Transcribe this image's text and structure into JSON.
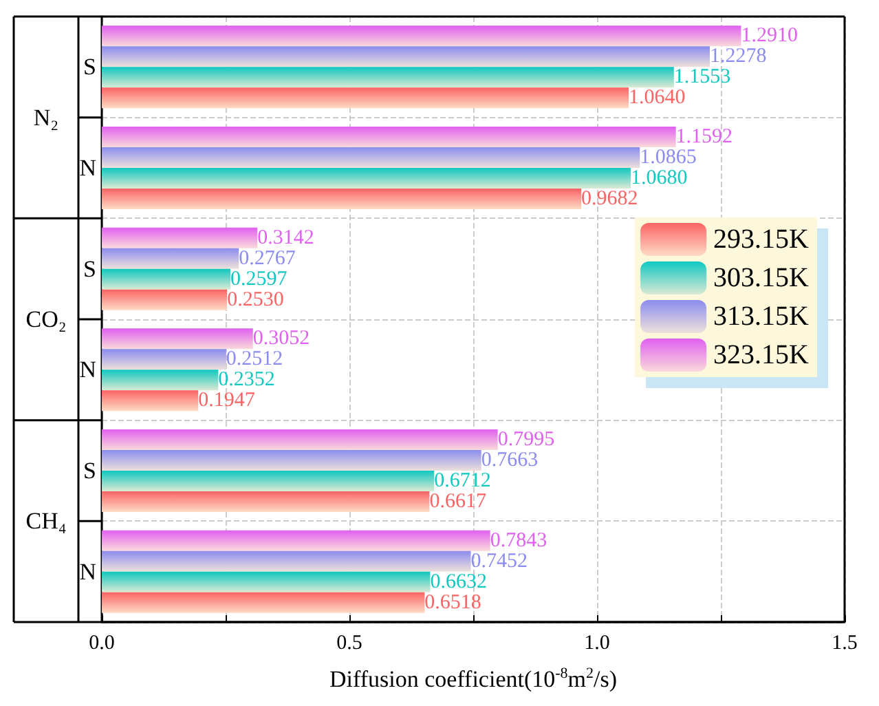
{
  "chart_data": {
    "type": "bar",
    "orientation": "horizontal",
    "xlabel": "Diffusion coefficient(10$^{-8}$m$^{2}$/s)",
    "categories": [
      "S",
      "N",
      "S",
      "N",
      "S",
      "N"
    ],
    "annotations": [
      "N₂",
      "CO₂",
      "CH₄"
    ],
    "series": [
      {
        "name": "293.15K",
        "color": "#fa6464",
        "values": [
          1.064,
          0.9682,
          0.253,
          0.1947,
          0.6617,
          0.6518
        ],
        "value_labels": [
          "1.0640",
          "0.9682",
          "0.2530",
          "0.1947",
          "0.6617",
          "0.6518"
        ]
      },
      {
        "name": "303.15K",
        "color": "#10c8c0",
        "values": [
          1.1553,
          1.068,
          0.2597,
          0.2352,
          0.6712,
          0.6632
        ],
        "value_labels": [
          "1.1553",
          "1.0680",
          "0.2597",
          "0.2352",
          "0.6712",
          "0.6632"
        ]
      },
      {
        "name": "313.15K",
        "color": "#8c8cf0",
        "values": [
          1.2278,
          1.0865,
          0.2767,
          0.2512,
          0.7663,
          0.7452
        ],
        "value_labels": [
          "1.2278",
          "1.0865",
          "0.2767",
          "0.2512",
          "0.7663",
          "0.7452"
        ]
      },
      {
        "name": "323.15K",
        "color": "#e060f0",
        "values": [
          1.291,
          1.1592,
          0.3142,
          0.3052,
          0.7995,
          0.7843
        ],
        "value_labels": [
          "1.2910",
          "1.1592",
          "0.3142",
          "0.3052",
          "0.7995",
          "0.7843"
        ]
      }
    ],
    "xlim": [
      0,
      1.5
    ],
    "xticks": [
      {
        "value": 0,
        "label": "0.0"
      },
      {
        "value": 0.25,
        "label": null
      },
      {
        "value": 0.5,
        "label": "0.5"
      },
      {
        "value": 0.75,
        "label": null
      },
      {
        "value": 1,
        "label": "1.0"
      },
      {
        "value": 1.25,
        "label": null
      },
      {
        "value": 1.5,
        "label": "1.5"
      }
    ],
    "grid": true,
    "legend": "right"
  }
}
